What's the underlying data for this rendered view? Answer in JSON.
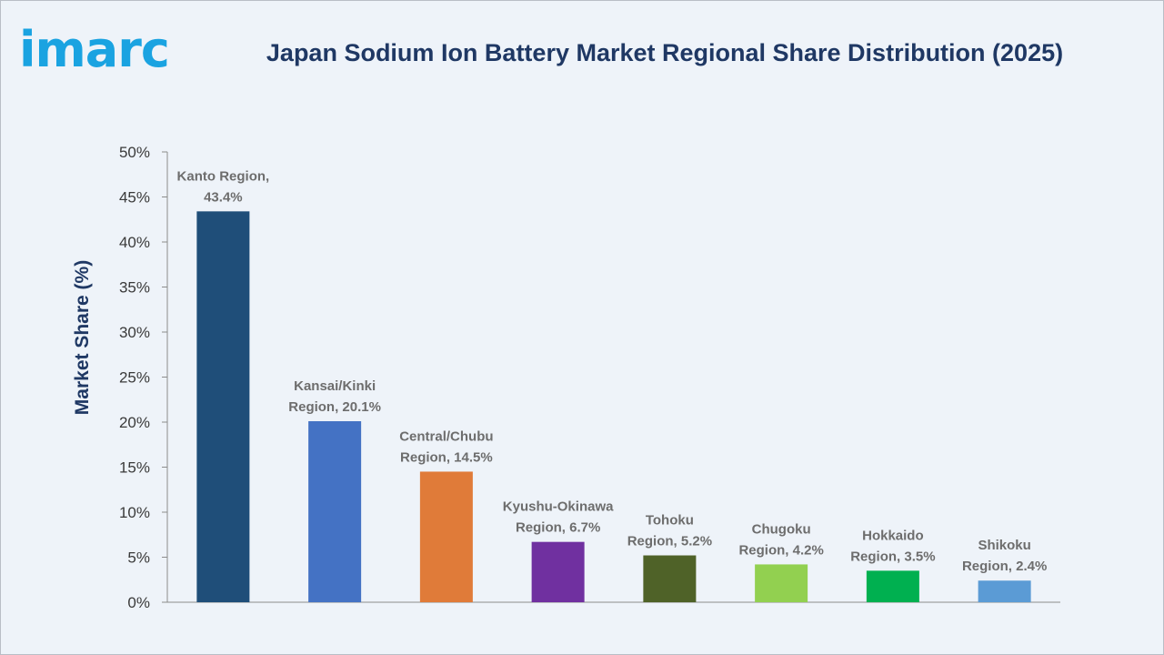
{
  "logo": {
    "text": "imarc",
    "color": "#1aa3e1"
  },
  "chart_data": {
    "type": "bar",
    "title": "Japan Sodium Ion Battery Market Regional Share Distribution (2025)",
    "xlabel": "",
    "ylabel": "Market Share (%)",
    "ylim": [
      0,
      50
    ],
    "yticks": [
      "0%",
      "5%",
      "10%",
      "15%",
      "20%",
      "25%",
      "30%",
      "35%",
      "40%",
      "45%",
      "50%"
    ],
    "grid": false,
    "legend": "none",
    "categories": [
      "Kanto Region",
      "Kansai/Kinki Region",
      "Central/Chubu Region",
      "Kyushu-Okinawa Region",
      "Tohoku Region",
      "Chugoku Region",
      "Hokkaido Region",
      "Shikoku Region"
    ],
    "values": [
      43.4,
      20.1,
      14.5,
      6.7,
      5.2,
      4.2,
      3.5,
      2.4
    ],
    "labels": [
      [
        "Kanto Region,",
        "43.4%"
      ],
      [
        "Kansai/Kinki",
        "Region, 20.1%"
      ],
      [
        "Central/Chubu",
        "Region, 14.5%"
      ],
      [
        "Kyushu-Okinawa",
        "Region, 6.7%"
      ],
      [
        "Tohoku",
        "Region, 5.2%"
      ],
      [
        "Chugoku",
        "Region, 4.2%"
      ],
      [
        "Hokkaido",
        "Region, 3.5%"
      ],
      [
        "Shikoku",
        "Region, 2.4%"
      ]
    ],
    "colors": [
      "#1f4e79",
      "#4472c4",
      "#e07b39",
      "#7030a0",
      "#4f6228",
      "#92d050",
      "#00b050",
      "#5b9bd5"
    ]
  }
}
